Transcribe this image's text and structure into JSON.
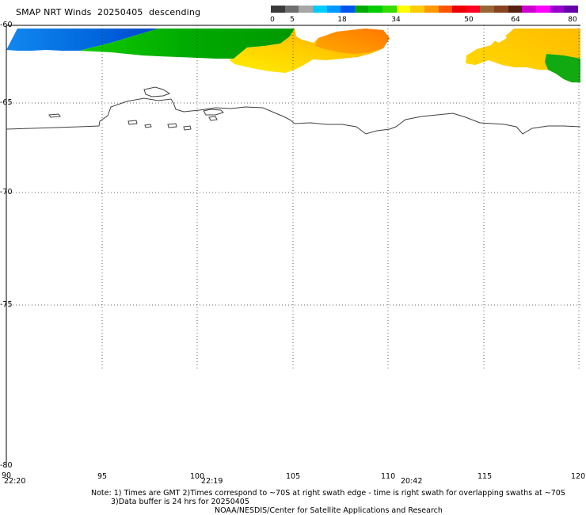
{
  "header": {
    "product": "SMAP NRT Winds",
    "date": "20250405",
    "pass": "descending"
  },
  "colorbar": {
    "labels": [
      "0",
      "5",
      "18",
      "34",
      "50",
      "64",
      "80"
    ],
    "segments": [
      "#3a3a3a",
      "#6e6e6e",
      "#a6a6a6",
      "#00ccff",
      "#0099ff",
      "#0055ee",
      "#00aa00",
      "#00cc00",
      "#33dd00",
      "#ffff00",
      "#ffcc00",
      "#ff9900",
      "#ff5500",
      "#ee0000",
      "#ff0022",
      "#996633",
      "#884422",
      "#552211",
      "#cc00cc",
      "#ff00ff",
      "#9900cc",
      "#6600aa"
    ]
  },
  "map": {
    "lat_labels": [
      "-60",
      "-65",
      "-70",
      "-75",
      "-80"
    ],
    "lon_labels": [
      "90",
      "95",
      "100",
      "105",
      "110",
      "115",
      "120"
    ],
    "times": [
      "22:20",
      "22:19",
      "20:42"
    ]
  },
  "notes": {
    "line1": "Note: 1) Times are GMT 2)Times correspond to ~70S at right swath edge - time is right swath for overlapping swaths at ~70S",
    "line2": "3)Data buffer is 24 hrs for 20250405",
    "line3": "NOAA/NESDIS/Center for Satellite Applications and Research"
  }
}
